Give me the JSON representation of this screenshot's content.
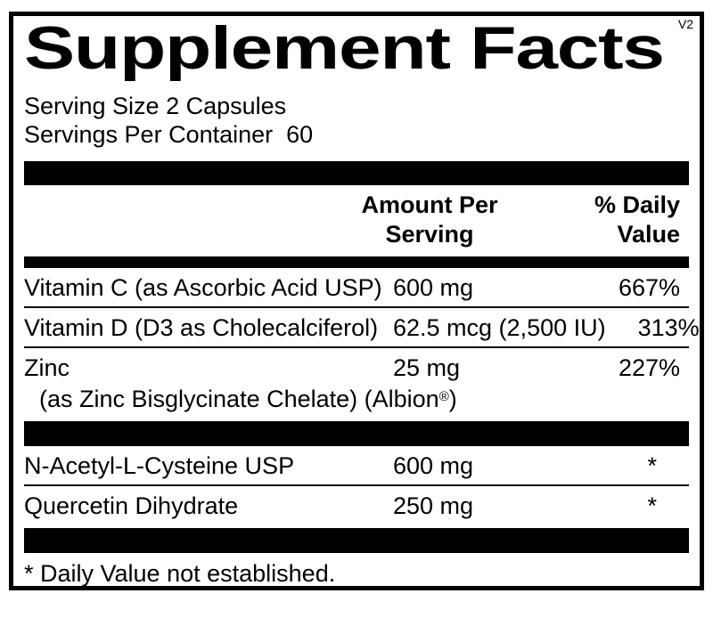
{
  "page": {
    "version": "V2"
  },
  "title": "Supplement Facts",
  "serving": {
    "size": "Serving Size 2 Capsules",
    "per_container": "Servings Per Container  60"
  },
  "columns": {
    "amount_line1": "Amount Per",
    "amount_line2": "Serving",
    "dv_line1": "% Daily",
    "dv_line2": "Value"
  },
  "nutrients": [
    {
      "name": "Vitamin C (as Ascorbic Acid USP)",
      "amount": "600 mg",
      "dv": "667%"
    },
    {
      "name": "Vitamin D (D3 as Cholecalciferol)",
      "amount": "62.5 mcg (2,500 IU)",
      "dv": "313%"
    },
    {
      "name": "Zinc",
      "amount": "25 mg",
      "dv": "227%",
      "sub_prefix": "(as Zinc Bisglycinate Chelate) (Albion",
      "sub_mark": "®",
      "sub_suffix": ")"
    }
  ],
  "other_ingredients": [
    {
      "name": "N-Acetyl-L-Cysteine USP",
      "amount": "600 mg",
      "dv": "*"
    },
    {
      "name": "Quercetin Dihydrate",
      "amount": "250 mg",
      "dv": "*"
    }
  ],
  "footnote": "* Daily Value not established.",
  "colors": {
    "ink": "#000000",
    "paper": "#ffffff"
  }
}
